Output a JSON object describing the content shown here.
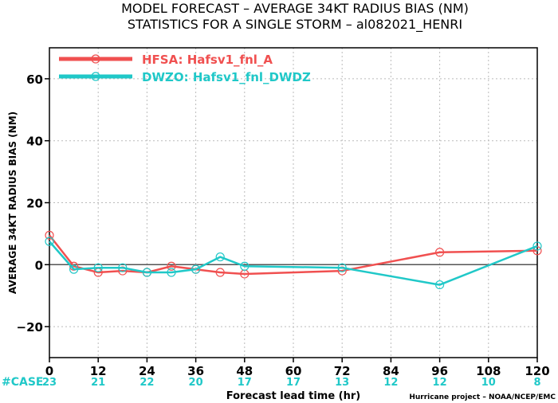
{
  "chart_data": {
    "type": "line",
    "title_line1": "MODEL FORECAST – AVERAGE 34KT RADIUS BIAS (NM)",
    "title_line2": "STATISTICS FOR A SINGLE STORM – al082021_HENRI",
    "ylabel": "AVERAGE 34KT RADIUS BIAS (NM)",
    "xlabel": "Forecast lead time (hr)",
    "credit": "Hurricane project – NOAA/NCEP/EMC",
    "xlim": [
      0,
      120
    ],
    "ylim": [
      -30,
      70
    ],
    "xticks": [
      0,
      12,
      24,
      36,
      48,
      60,
      72,
      84,
      96,
      108,
      120
    ],
    "yticks": [
      -20,
      0,
      20,
      40,
      60
    ],
    "xtick_labels": [
      "0",
      "12",
      "24",
      "36",
      "48",
      "60",
      "72",
      "84",
      "96",
      "108",
      "120"
    ],
    "ytick_labels": [
      "−20",
      "0",
      "20",
      "40",
      "60"
    ],
    "grid": true,
    "legend_position": "top-left",
    "case_label": "#CASE",
    "case_counts": [
      "23",
      "21",
      "22",
      "20",
      "17",
      "17",
      "13",
      "12",
      "12",
      "10",
      "8"
    ],
    "zero_line": true,
    "series": [
      {
        "name": "HFSA: Hafsv1_fnl_A",
        "color": "#f05050",
        "x": [
          0,
          6,
          12,
          18,
          24,
          30,
          36,
          42,
          48,
          72,
          96,
          120
        ],
        "y": [
          9.5,
          -0.5,
          -2.5,
          -2,
          -2.5,
          -0.5,
          -1.5,
          -2.5,
          -3,
          -2,
          4,
          4.5
        ]
      },
      {
        "name": "DWZO: Hafsv1_fnl_DWDZ",
        "color": "#20c8c8",
        "x": [
          0,
          6,
          12,
          18,
          24,
          30,
          36,
          42,
          48,
          72,
          96,
          120
        ],
        "y": [
          7.5,
          -1.5,
          -1,
          -1,
          -2.5,
          -2.5,
          -1.5,
          2.5,
          -0.5,
          -1,
          -6.5,
          6
        ]
      }
    ]
  }
}
